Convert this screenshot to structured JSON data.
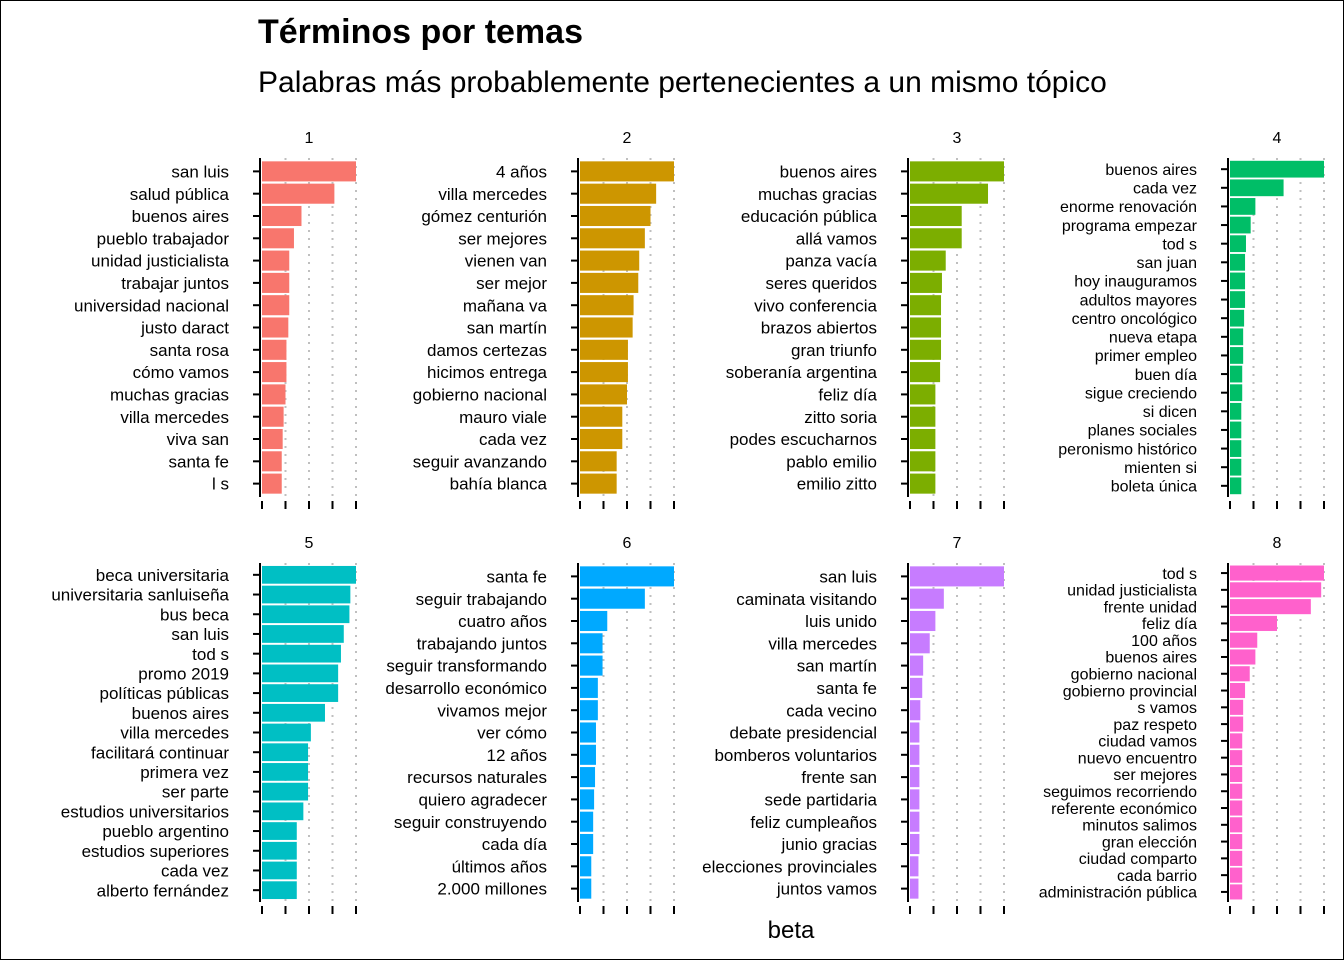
{
  "chart_data": {
    "type": "bar",
    "orientation": "horizontal",
    "facets": "2x4",
    "title": "Términos por temas",
    "subtitle": "Palabras más probablemente pertenecientes a un mismo tópico",
    "xlabel": "beta",
    "ylabel": "",
    "grid": "dotted vertical",
    "legend": "none",
    "panels": [
      {
        "name": "1",
        "color": "#F8766D",
        "categories": [
          "san luis",
          "salud pública",
          "buenos aires",
          "pueblo trabajador",
          "unidad justicialista",
          "trabajar juntos",
          "universidad nacional",
          "justo daract",
          "santa rosa",
          "cómo vamos",
          "muchas gracias",
          "villa mercedes",
          "viva san",
          "santa fe",
          "l s"
        ],
        "values": [
          1.0,
          0.77,
          0.42,
          0.34,
          0.29,
          0.29,
          0.29,
          0.28,
          0.26,
          0.26,
          0.25,
          0.23,
          0.22,
          0.21,
          0.21
        ]
      },
      {
        "name": "2",
        "color": "#CD9600",
        "categories": [
          "4 años",
          "villa mercedes",
          "gómez centurión",
          "ser mejores",
          "vienen van",
          "ser mejor",
          "mañana va",
          "san martín",
          "damos certezas",
          "hicimos entrega",
          "gobierno nacional",
          "mauro viale",
          "cada vez",
          "seguir avanzando",
          "bahía blanca"
        ],
        "values": [
          1.0,
          0.81,
          0.75,
          0.69,
          0.63,
          0.62,
          0.57,
          0.56,
          0.51,
          0.51,
          0.5,
          0.45,
          0.45,
          0.39,
          0.39
        ]
      },
      {
        "name": "3",
        "color": "#7CAE00",
        "categories": [
          "buenos aires",
          "muchas gracias",
          "educación pública",
          "allá vamos",
          "panza vacía",
          "seres queridos",
          "vivo conferencia",
          "brazos abiertos",
          "gran triunfo",
          "soberanía argentina",
          "feliz día",
          "zitto soria",
          "podes escucharnos",
          "pablo emilio",
          "emilio zitto"
        ],
        "values": [
          1.0,
          0.83,
          0.55,
          0.55,
          0.38,
          0.34,
          0.33,
          0.33,
          0.33,
          0.32,
          0.27,
          0.27,
          0.27,
          0.27,
          0.27
        ]
      },
      {
        "name": "4",
        "color": "#00BE67",
        "categories": [
          "buenos aires",
          "cada vez",
          "enorme renovación",
          "programa empezar",
          "tod s",
          "san juan",
          "hoy inauguramos",
          "adultos mayores",
          "centro oncológico",
          "nueva etapa",
          "primer empleo",
          "buen día",
          "sigue creciendo",
          "si dicen",
          "planes sociales",
          "peronismo histórico",
          "mienten si",
          "boleta única"
        ],
        "values": [
          1.0,
          0.57,
          0.27,
          0.22,
          0.17,
          0.16,
          0.16,
          0.16,
          0.15,
          0.14,
          0.14,
          0.13,
          0.13,
          0.12,
          0.12,
          0.12,
          0.12,
          0.12
        ]
      },
      {
        "name": "5",
        "color": "#00BFC4",
        "categories": [
          "beca universitaria",
          "universitaria sanluiseña",
          "bus beca",
          "san luis",
          "tod s",
          "promo 2019",
          "políticas públicas",
          "buenos aires",
          "villa mercedes",
          "facilitará continuar",
          "primera vez",
          "ser parte",
          "estudios universitarios",
          "pueblo argentino",
          "estudios superiores",
          "cada vez",
          "alberto fernández"
        ],
        "values": [
          1.0,
          0.94,
          0.93,
          0.87,
          0.84,
          0.81,
          0.81,
          0.67,
          0.52,
          0.49,
          0.49,
          0.49,
          0.44,
          0.37,
          0.37,
          0.37,
          0.37
        ]
      },
      {
        "name": "6",
        "color": "#00A9FF",
        "categories": [
          "santa fe",
          "seguir trabajando",
          "cuatro años",
          "trabajando juntos",
          "seguir transformando",
          "desarrollo económico",
          "vivamos mejor",
          "ver cómo",
          "12 años",
          "recursos naturales",
          "quiero agradecer",
          "seguir construyendo",
          "cada día",
          "últimos años",
          "2.000 millones"
        ],
        "values": [
          1.0,
          0.69,
          0.29,
          0.24,
          0.24,
          0.19,
          0.19,
          0.17,
          0.17,
          0.16,
          0.15,
          0.14,
          0.14,
          0.12,
          0.12
        ]
      },
      {
        "name": "7",
        "color": "#C77CFF",
        "categories": [
          "san luis",
          "caminata visitando",
          "luis unido",
          "villa mercedes",
          "san martín",
          "santa fe",
          "cada vecino",
          "debate presidencial",
          "bomberos voluntarios",
          "frente san",
          "sede partidaria",
          "feliz cumpleaños",
          "junio gracias",
          "elecciones provinciales",
          "juntos vamos"
        ],
        "values": [
          1.0,
          0.36,
          0.27,
          0.21,
          0.14,
          0.13,
          0.11,
          0.1,
          0.1,
          0.1,
          0.1,
          0.1,
          0.1,
          0.09,
          0.09
        ]
      },
      {
        "name": "8",
        "color": "#FF61CC",
        "categories": [
          "tod s",
          "unidad justicialista",
          "frente unidad",
          "feliz día",
          "100 años",
          "buenos aires",
          "gobierno nacional",
          "gobierno provincial",
          "s vamos",
          "paz respeto",
          "ciudad vamos",
          "nuevo encuentro",
          "ser mejores",
          "seguimos recorriendo",
          "referente económico",
          "minutos salimos",
          "gran elección",
          "ciudad comparto",
          "cada barrio",
          "administración pública"
        ],
        "values": [
          1.0,
          0.97,
          0.86,
          0.5,
          0.29,
          0.27,
          0.21,
          0.16,
          0.14,
          0.14,
          0.13,
          0.13,
          0.13,
          0.13,
          0.13,
          0.13,
          0.13,
          0.13,
          0.13,
          0.13
        ]
      }
    ]
  }
}
